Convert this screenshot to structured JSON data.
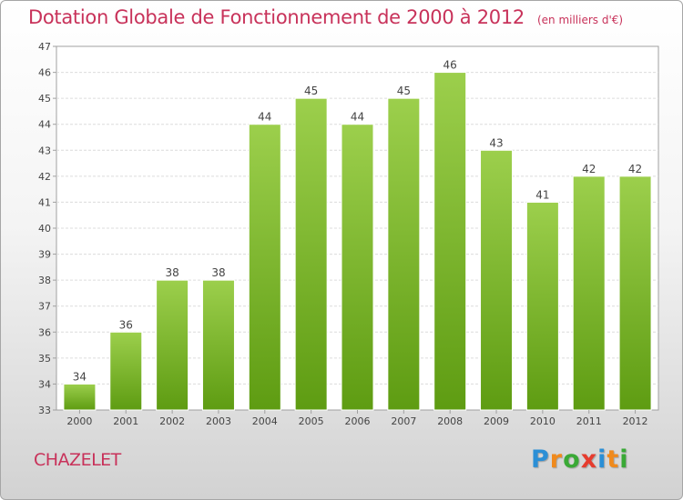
{
  "header": {
    "title": "Dotation Globale de Fonctionnement de 2000 à 2012",
    "subtitle": "(en milliers d'€)"
  },
  "commune": "CHAZELET",
  "logo": {
    "letters": [
      "P",
      "r",
      "o",
      "x",
      "i",
      "t",
      "i"
    ],
    "colors": [
      "#2b8fd6",
      "#f08a1c",
      "#3aa936",
      "#e63c2e",
      "#2b8fd6",
      "#f08a1c",
      "#3aa936"
    ]
  },
  "chart_data": {
    "type": "bar",
    "title": "Dotation Globale de Fonctionnement de 2000 à 2012",
    "subtitle": "(en milliers d'€)",
    "categories": [
      "2000",
      "2001",
      "2002",
      "2003",
      "2004",
      "2005",
      "2006",
      "2007",
      "2008",
      "2009",
      "2010",
      "2011",
      "2012"
    ],
    "values": [
      34,
      36,
      38,
      38,
      44,
      45,
      44,
      45,
      46,
      43,
      41,
      42,
      42
    ],
    "data_labels": [
      "34",
      "36",
      "38",
      "38",
      "44",
      "45",
      "44",
      "45",
      "46",
      "43",
      "41",
      "42",
      "42"
    ],
    "yticks": [
      "33",
      "34",
      "35",
      "36",
      "37",
      "38",
      "39",
      "40",
      "41",
      "42",
      "43",
      "44",
      "45",
      "46",
      "47"
    ],
    "ylim": [
      33,
      47
    ],
    "grid": true,
    "bar_color_top": "#9ccf4c",
    "bar_color_bottom": "#5e9c12"
  }
}
